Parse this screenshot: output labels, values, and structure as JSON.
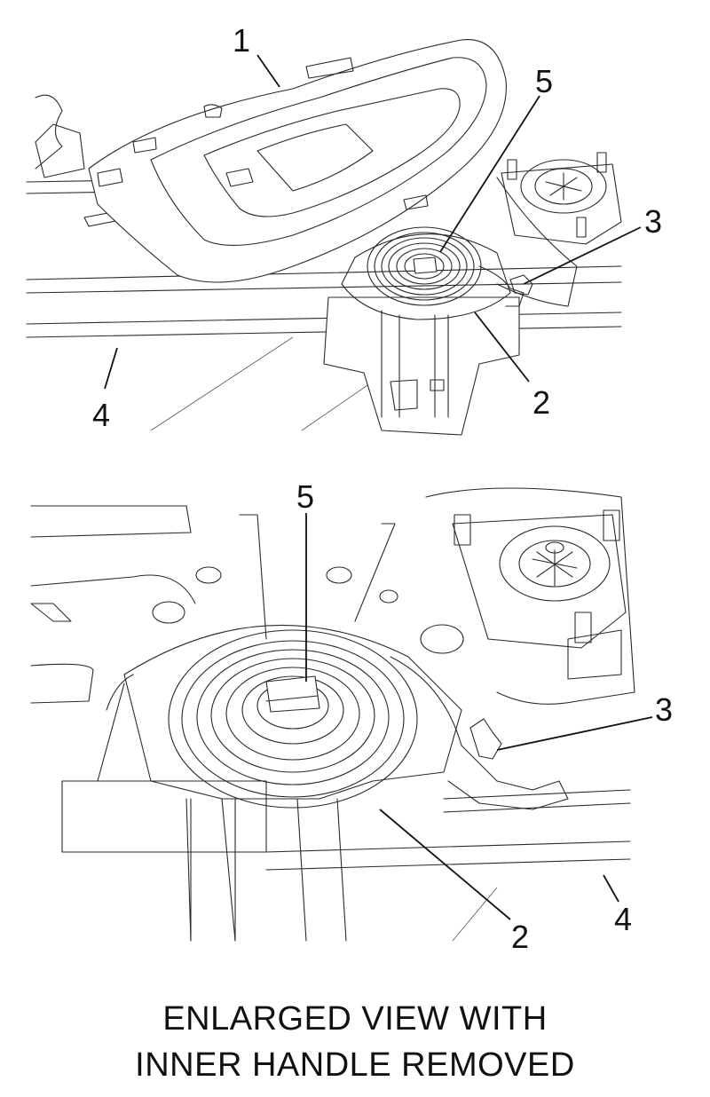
{
  "top_view": {
    "callouts": [
      "1",
      "5",
      "3",
      "2",
      "4"
    ]
  },
  "enlarged_view": {
    "callouts": [
      "5",
      "3",
      "2",
      "4"
    ]
  },
  "caption": {
    "line1": "ENLARGED VIEW WITH",
    "line2": "INNER HANDLE REMOVED"
  },
  "colors": {
    "line": "#2a2a2a",
    "background": "#ffffff"
  }
}
